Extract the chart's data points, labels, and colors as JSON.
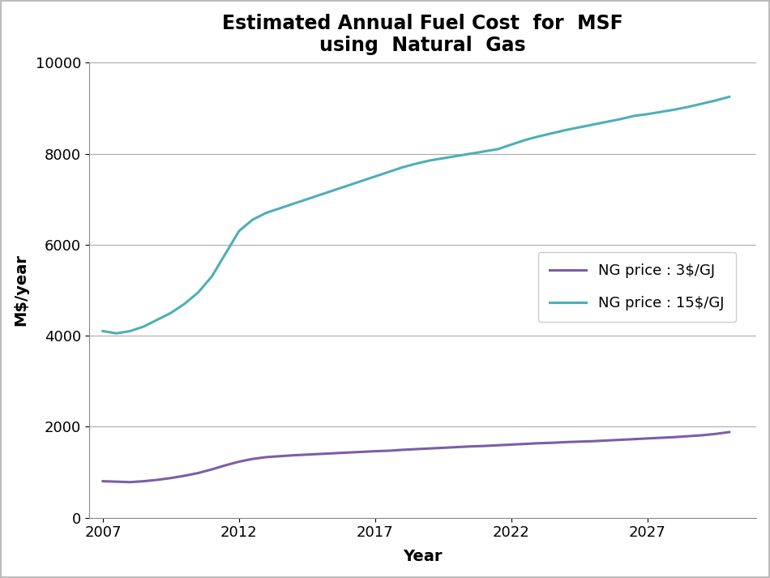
{
  "title": "Estimated Annual Fuel Cost  for  MSF\nusing  Natural  Gas",
  "xlabel": "Year",
  "ylabel": "M$/year",
  "xlim": [
    2006.5,
    2031
  ],
  "ylim": [
    0,
    10000
  ],
  "yticks": [
    0,
    2000,
    4000,
    6000,
    8000,
    10000
  ],
  "xticks": [
    2007,
    2012,
    2017,
    2022,
    2027
  ],
  "line1_label": "NG price : 3$/GJ",
  "line2_label": "NG price : 15$/GJ",
  "line1_color": "#7B5EA7",
  "line2_color": "#4DAFB8",
  "background_color": "#ffffff",
  "plot_bg_color": "#ffffff",
  "years": [
    2007,
    2007.5,
    2008,
    2008.5,
    2009,
    2009.5,
    2010,
    2010.5,
    2011,
    2011.5,
    2012,
    2012.5,
    2013,
    2013.5,
    2014,
    2014.5,
    2015,
    2015.5,
    2016,
    2016.5,
    2017,
    2017.5,
    2018,
    2018.5,
    2019,
    2019.5,
    2020,
    2020.5,
    2021,
    2021.5,
    2022,
    2022.5,
    2023,
    2023.5,
    2024,
    2024.5,
    2025,
    2025.5,
    2026,
    2026.5,
    2027,
    2027.5,
    2028,
    2028.5,
    2029,
    2029.5,
    2030
  ],
  "ng3_values": [
    800,
    790,
    780,
    800,
    830,
    870,
    920,
    980,
    1060,
    1150,
    1230,
    1290,
    1330,
    1350,
    1370,
    1385,
    1400,
    1415,
    1430,
    1445,
    1460,
    1470,
    1490,
    1505,
    1520,
    1535,
    1550,
    1565,
    1575,
    1590,
    1605,
    1620,
    1635,
    1645,
    1660,
    1670,
    1680,
    1695,
    1710,
    1725,
    1740,
    1755,
    1770,
    1790,
    1810,
    1840,
    1880
  ],
  "ng15_values": [
    4100,
    4050,
    4100,
    4200,
    4350,
    4500,
    4700,
    4950,
    5300,
    5800,
    6300,
    6550,
    6700,
    6800,
    6900,
    7000,
    7100,
    7200,
    7300,
    7400,
    7500,
    7600,
    7700,
    7780,
    7850,
    7900,
    7950,
    8000,
    8050,
    8100,
    8200,
    8300,
    8380,
    8450,
    8520,
    8580,
    8640,
    8700,
    8760,
    8830,
    8870,
    8920,
    8970,
    9030,
    9100,
    9170,
    9250
  ],
  "title_fontsize": 17,
  "label_fontsize": 14,
  "tick_fontsize": 13,
  "legend_fontsize": 13,
  "line_width": 2.2,
  "grid_color": "#aaaaaa",
  "border_color": "#bbbbbb"
}
